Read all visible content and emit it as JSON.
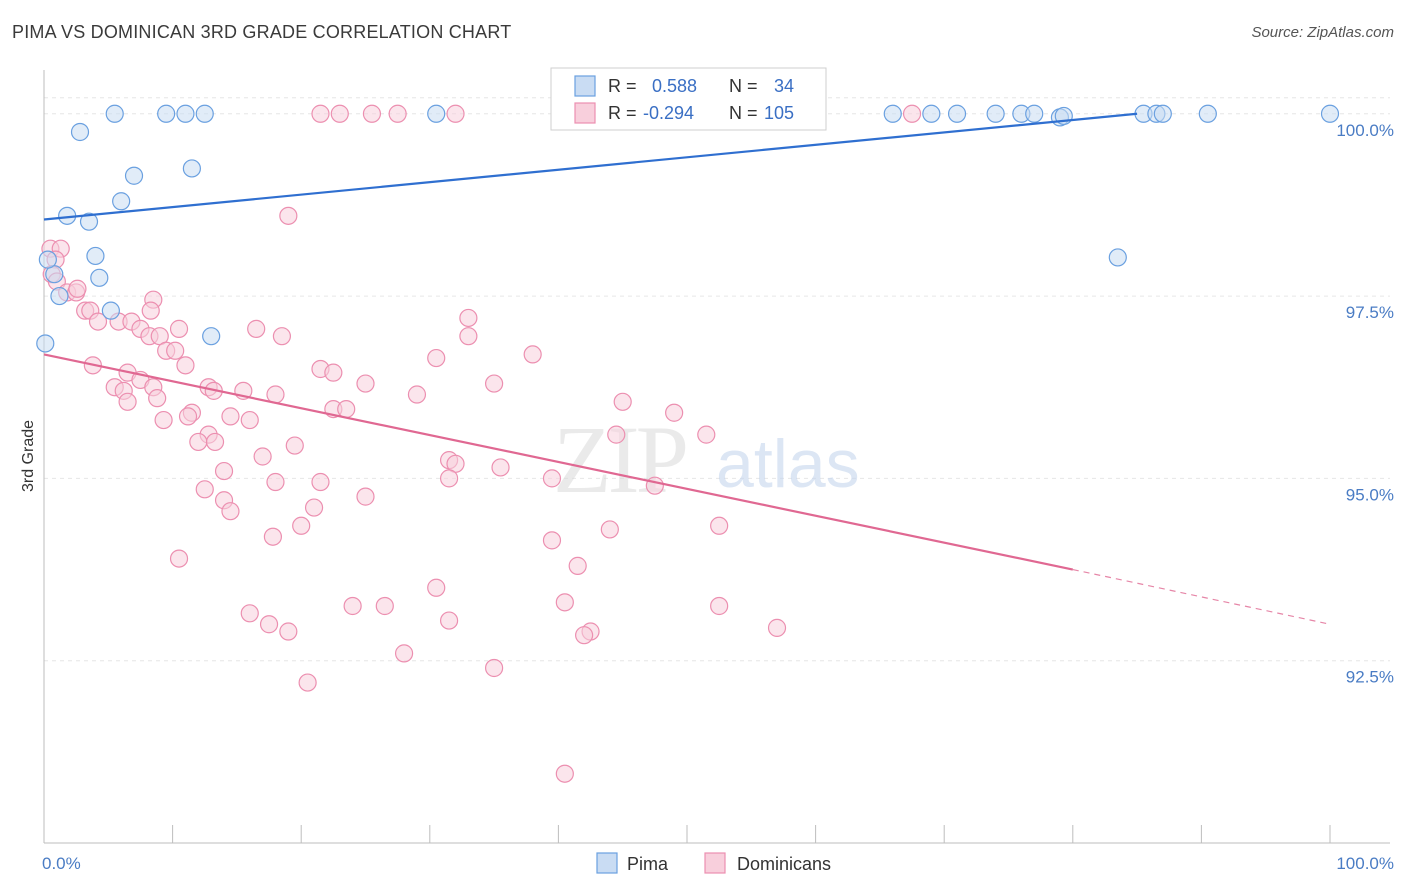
{
  "title": "PIMA VS DOMINICAN 3RD GRADE CORRELATION CHART",
  "source": "Source: ZipAtlas.com",
  "watermark": {
    "zip": "ZIP",
    "atlas": "atlas"
  },
  "colors": {
    "pima": "#6aa0e0",
    "pima_fill": "#c9dcf3",
    "pima_line": "#2f6fd0",
    "dominicans": "#ec8fb0",
    "dominicans_fill": "#f8cfdc",
    "dominicans_line": "#e06892",
    "tick_text": "#4a7cc4"
  },
  "legend": {
    "rows": [
      {
        "r_label": "R =",
        "r_value": "0.588",
        "n_label": "N =",
        "n_value": "34",
        "series": "pima"
      },
      {
        "r_label": "R =",
        "r_value": "-0.294",
        "n_label": "N =",
        "n_value": "105",
        "series": "dominicans"
      }
    ]
  },
  "chart_data": {
    "type": "scatter",
    "title": "PIMA VS DOMINICAN 3RD GRADE CORRELATION CHART",
    "xlabel": "",
    "ylabel": "3rd Grade",
    "xlim": [
      0,
      100
    ],
    "ylim": [
      90.0,
      100.6
    ],
    "x_tick_labels": [
      "0.0%",
      "100.0%"
    ],
    "y_ticks": [
      {
        "value": 100.0,
        "label": "100.0%"
      },
      {
        "value": 97.5,
        "label": "97.5%"
      },
      {
        "value": 95.0,
        "label": "95.0%"
      },
      {
        "value": 92.5,
        "label": "92.5%"
      }
    ],
    "grid": true,
    "legend_position": "top-center",
    "series": [
      {
        "name": "Pima",
        "key": "pima",
        "trend": {
          "x0": 0,
          "y0": 98.55,
          "x1": 85,
          "y1": 100.0
        },
        "points": [
          [
            5.5,
            100.0
          ],
          [
            9.5,
            100.0
          ],
          [
            11,
            100.0
          ],
          [
            12.5,
            100.0
          ],
          [
            30.5,
            100.0
          ],
          [
            50,
            100.0
          ],
          [
            66,
            100.0
          ],
          [
            69,
            100.0
          ],
          [
            71,
            100.0
          ],
          [
            74,
            100.0
          ],
          [
            76,
            100.0
          ],
          [
            77,
            100.0
          ],
          [
            79,
            99.95
          ],
          [
            79.3,
            99.97
          ],
          [
            85.5,
            100.0
          ],
          [
            86.5,
            100.0
          ],
          [
            87,
            100.0
          ],
          [
            90.5,
            100.0
          ],
          [
            100,
            100.0
          ],
          [
            2.8,
            99.75
          ],
          [
            7,
            99.15
          ],
          [
            11.5,
            99.25
          ],
          [
            6,
            98.8
          ],
          [
            1.8,
            98.6
          ],
          [
            3.5,
            98.52
          ],
          [
            4,
            98.05
          ],
          [
            4.3,
            97.75
          ],
          [
            0.8,
            97.8
          ],
          [
            1.2,
            97.5
          ],
          [
            5.2,
            97.3
          ],
          [
            13,
            96.95
          ],
          [
            0.1,
            96.85
          ],
          [
            83.5,
            98.03
          ],
          [
            0.3,
            98.0
          ]
        ]
      },
      {
        "name": "Dominicans",
        "key": "dominicans",
        "trend": {
          "x0": 0,
          "y0": 96.7,
          "x1": 80,
          "y1": 93.75,
          "x_end": 100,
          "y_end": 93.0
        },
        "points": [
          [
            21.5,
            100.0
          ],
          [
            23,
            100.0
          ],
          [
            25.5,
            100.0
          ],
          [
            27.5,
            100.0
          ],
          [
            32,
            100.0
          ],
          [
            67.5,
            100.0
          ],
          [
            19,
            98.6
          ],
          [
            0.5,
            98.15
          ],
          [
            1.3,
            98.15
          ],
          [
            0.9,
            98.0
          ],
          [
            0.6,
            97.8
          ],
          [
            1.0,
            97.7
          ],
          [
            1.8,
            97.55
          ],
          [
            2.5,
            97.55
          ],
          [
            2.6,
            97.6
          ],
          [
            8.5,
            97.45
          ],
          [
            3.2,
            97.3
          ],
          [
            3.6,
            97.3
          ],
          [
            8.3,
            97.3
          ],
          [
            4.2,
            97.15
          ],
          [
            5.8,
            97.15
          ],
          [
            6.8,
            97.15
          ],
          [
            33,
            97.2
          ],
          [
            7.5,
            97.05
          ],
          [
            10.5,
            97.05
          ],
          [
            16.5,
            97.05
          ],
          [
            8.2,
            96.95
          ],
          [
            9,
            96.95
          ],
          [
            18.5,
            96.95
          ],
          [
            33,
            96.95
          ],
          [
            9.5,
            96.75
          ],
          [
            10.2,
            96.75
          ],
          [
            38,
            96.7
          ],
          [
            30.5,
            96.65
          ],
          [
            3.8,
            96.55
          ],
          [
            11,
            96.55
          ],
          [
            21.5,
            96.5
          ],
          [
            6.5,
            96.45
          ],
          [
            22.5,
            96.45
          ],
          [
            7.5,
            96.35
          ],
          [
            25,
            96.3
          ],
          [
            35,
            96.3
          ],
          [
            5.5,
            96.25
          ],
          [
            8.5,
            96.25
          ],
          [
            12.8,
            96.25
          ],
          [
            6.2,
            96.2
          ],
          [
            13.2,
            96.2
          ],
          [
            15.5,
            96.2
          ],
          [
            18,
            96.15
          ],
          [
            29,
            96.15
          ],
          [
            8.8,
            96.1
          ],
          [
            6.5,
            96.05
          ],
          [
            45,
            96.05
          ],
          [
            22.5,
            95.95
          ],
          [
            23.5,
            95.95
          ],
          [
            11.5,
            95.9
          ],
          [
            11.2,
            95.85
          ],
          [
            14.5,
            95.85
          ],
          [
            49,
            95.9
          ],
          [
            9.3,
            95.8
          ],
          [
            16,
            95.8
          ],
          [
            12.8,
            95.6
          ],
          [
            44.5,
            95.6
          ],
          [
            51.5,
            95.6
          ],
          [
            12,
            95.5
          ],
          [
            13.3,
            95.5
          ],
          [
            19.5,
            95.45
          ],
          [
            17,
            95.3
          ],
          [
            31.5,
            95.25
          ],
          [
            32,
            95.2
          ],
          [
            35.5,
            95.15
          ],
          [
            14,
            95.1
          ],
          [
            31.5,
            95.0
          ],
          [
            39.5,
            95.0
          ],
          [
            18,
            94.95
          ],
          [
            21.5,
            94.95
          ],
          [
            47.5,
            94.9
          ],
          [
            12.5,
            94.85
          ],
          [
            25,
            94.75
          ],
          [
            14,
            94.7
          ],
          [
            21,
            94.6
          ],
          [
            14.5,
            94.55
          ],
          [
            20,
            94.35
          ],
          [
            44,
            94.3
          ],
          [
            52.5,
            94.35
          ],
          [
            39.5,
            94.15
          ],
          [
            10.5,
            93.9
          ],
          [
            41.5,
            93.8
          ],
          [
            30.5,
            93.5
          ],
          [
            40.5,
            93.3
          ],
          [
            24,
            93.25
          ],
          [
            26.5,
            93.25
          ],
          [
            52.5,
            93.25
          ],
          [
            16,
            93.15
          ],
          [
            31.5,
            93.05
          ],
          [
            17.5,
            93.0
          ],
          [
            42.5,
            92.9
          ],
          [
            57,
            92.95
          ],
          [
            19,
            92.9
          ],
          [
            28,
            92.6
          ],
          [
            35,
            92.4
          ],
          [
            20.5,
            92.2
          ],
          [
            40.5,
            90.95
          ],
          [
            17.8,
            94.2
          ],
          [
            42,
            92.85
          ]
        ]
      }
    ]
  }
}
